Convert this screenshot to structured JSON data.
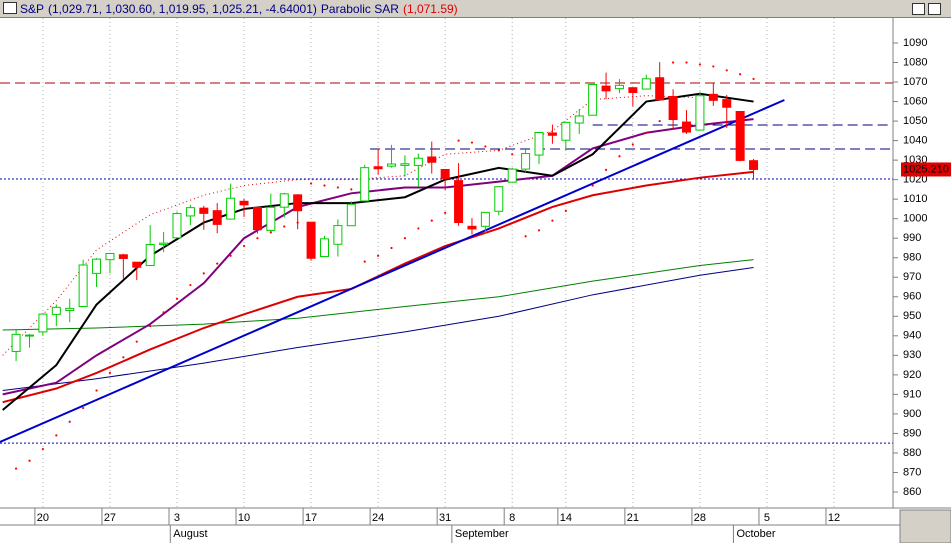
{
  "chart_data": {
    "type": "candlestick",
    "title": "S&P",
    "ohlc_label": "(1,029.71, 1,030.60, 1,019.95, 1,025.21, -4.64001)",
    "xlim": [
      -3.2,
      63.4
    ],
    "ylim": [
      851.8,
      1102.8
    ],
    "yticks": [
      860,
      870,
      880,
      890,
      900,
      910,
      920,
      930,
      940,
      950,
      960,
      970,
      980,
      990,
      1000,
      1010,
      1020,
      1030,
      1040,
      1050,
      1060,
      1070,
      1080,
      1090
    ],
    "xticks": [
      {
        "value": 0,
        "label": "20"
      },
      {
        "value": 5,
        "label": "27"
      },
      {
        "value": 10,
        "label": "3"
      },
      {
        "value": 15,
        "label": "10"
      },
      {
        "value": 20,
        "label": "17"
      },
      {
        "value": 25,
        "label": "24"
      },
      {
        "value": 30,
        "label": "31"
      },
      {
        "value": 35,
        "label": "8"
      },
      {
        "value": 39,
        "label": "14"
      },
      {
        "value": 44,
        "label": "21"
      },
      {
        "value": 49,
        "label": "28"
      },
      {
        "value": 54,
        "label": "5"
      },
      {
        "value": 59,
        "label": "12"
      }
    ],
    "months": [
      {
        "value": 9.5,
        "label": "August"
      },
      {
        "value": 30.5,
        "label": "September"
      },
      {
        "value": 51.5,
        "label": "October"
      }
    ],
    "grid": true,
    "candles": {
      "up_color": "#00cc00",
      "down_color": "#ff0000",
      "x": [
        -2,
        -1,
        0,
        1,
        2,
        3,
        4,
        5,
        6,
        7,
        8,
        9,
        10,
        11,
        12,
        13,
        14,
        15,
        16,
        17,
        18,
        19,
        20,
        21,
        22,
        23,
        24,
        25,
        26,
        27,
        28,
        29,
        30,
        31,
        32,
        33,
        34,
        35,
        36,
        37,
        38,
        39,
        40,
        41,
        42,
        43,
        44,
        45,
        46,
        47,
        48,
        49,
        50,
        51,
        52,
        53
      ],
      "open": [
        932,
        940,
        942,
        951,
        953,
        955,
        972,
        979,
        981.5,
        977.7,
        976,
        986.8,
        990.2,
        1001.4,
        1005.4,
        1004.1,
        999.8,
        1008.9,
        1005.8,
        994,
        1005.9,
        1012.2,
        998.2,
        980.6,
        986.9,
        996.4,
        1009.1,
        1026.6,
        1026.9,
        1027.3,
        1027.3,
        1031.6,
        1025.2,
        1019.5,
        996.1,
        996.1,
        1003.8,
        1018.7,
        1025.4,
        1032.6,
        1043.9,
        1040.2,
        1049,
        1053,
        1067.9,
        1066.6,
        1067.1,
        1066.4,
        1072.2,
        1062.6,
        1049.5,
        1045.4,
        1063.7,
        1061,
        1054.9,
        1029.71
      ],
      "high": [
        943,
        941,
        951.6,
        956,
        959,
        979,
        979.8,
        982.5,
        982,
        977.7,
        996.7,
        993.2,
        1003.6,
        1007.1,
        1006.6,
        1008,
        1018,
        1010.1,
        1005.8,
        1012.8,
        1013.2,
        1012.6,
        998.2,
        991.2,
        999.6,
        1008.9,
        1027.6,
        1035.8,
        1037.8,
        1032.5,
        1033.3,
        1039.5,
        1025.2,
        1028.5,
        1000.3,
        1003.4,
        1016.5,
        1026.1,
        1036.3,
        1044.1,
        1048.2,
        1049.7,
        1056,
        1068.8,
        1074.8,
        1071.5,
        1067.3,
        1073.8,
        1080.2,
        1066.3,
        1055.6,
        1065.1,
        1069.6,
        1063.4,
        1054.9,
        1030.6
      ],
      "low": [
        927,
        934,
        940,
        945,
        947,
        955,
        965,
        972,
        969,
        968.6,
        976,
        982.9,
        990.2,
        996.7,
        994.3,
        992.5,
        999.8,
        1000.9,
        992.4,
        993.4,
        1000.5,
        994.6,
        978.5,
        980.6,
        980.6,
        996.4,
        1009.1,
        1022.5,
        1026.2,
        1021.6,
        1016.2,
        1023.1,
        1014.6,
        996.3,
        991.9,
        992.3,
        1001.7,
        1018.7,
        1023.8,
        1028,
        1038.4,
        1035,
        1043.4,
        1052.9,
        1061.2,
        1064.3,
        1057.5,
        1066.4,
        1060.4,
        1045.9,
        1043.4,
        1045.4,
        1057.8,
        1046.5,
        1029.4,
        1019.95
      ],
      "close": [
        940.74,
        940.38,
        951.13,
        954.58,
        954.07,
        976.29,
        979.26,
        982.18,
        979.62,
        975.15,
        986.75,
        987.48,
        1002.63,
        1005.65,
        1002.72,
        997.08,
        1010.48,
        1007.1,
        994.35,
        1005.81,
        1012.73,
        1004.09,
        979.73,
        989.67,
        996.46,
        1007.37,
        1026.13,
        1025.57,
        1028,
        1028.12,
        1030.98,
        1028.93,
        1020.62,
        998.04,
        994.75,
        1003.24,
        1016.4,
        1025.39,
        1033.37,
        1044.14,
        1042.73,
        1049.34,
        1052.63,
        1068.76,
        1065.49,
        1068.3,
        1064.66,
        1071.66,
        1060.87,
        1050.78,
        1044.38,
        1062.98,
        1060.61,
        1057.08,
        1029.85,
        1025.21
      ]
    },
    "sar": {
      "label": "Parabolic SAR",
      "value_label": "(1,071.59)",
      "color": "#ff0000",
      "values": [
        872,
        876,
        882,
        889,
        896,
        903,
        912,
        921,
        929,
        937,
        945,
        952,
        959,
        966,
        972,
        977,
        981,
        986,
        990,
        993,
        996,
        998,
        1018,
        1017,
        1016,
        1015,
        978,
        981,
        985,
        990,
        995,
        999,
        1003,
        1040,
        1039,
        1037,
        1035,
        1033,
        991,
        994,
        999,
        1004,
        1010,
        1017,
        1025,
        1032,
        1038,
        1044,
        1050,
        1080,
        1080,
        1079,
        1078,
        1076,
        1074,
        1071.59
      ]
    },
    "lines": [
      {
        "color": "#008000",
        "style": "thin",
        "x": [
          -3,
          4,
          12,
          19,
          27,
          34,
          41,
          49,
          53
        ],
        "values": [
          943,
          944,
          946,
          949,
          955,
          960,
          968,
          976,
          979
        ]
      },
      {
        "color": "#000080",
        "style": "thin",
        "x": [
          -3,
          4,
          12,
          19,
          27,
          34,
          41,
          49,
          53
        ],
        "values": [
          912,
          918,
          926,
          934,
          942,
          950,
          961,
          971,
          975
        ]
      },
      {
        "color": "#e00000",
        "style": "dotted",
        "x": [
          -3,
          1,
          4,
          8,
          12,
          15,
          19,
          23,
          27,
          30,
          34,
          38,
          41,
          45,
          49
        ],
        "values": [
          930,
          958,
          984,
          1002,
          1012,
          1017,
          1020,
          1020,
          1022,
          1033,
          1035,
          1045,
          1061,
          1063,
          1062
        ]
      },
      {
        "color": "#dd0000",
        "style": "thick",
        "x": [
          -3,
          1,
          4,
          8,
          12,
          15,
          19,
          23,
          27,
          30,
          34,
          38,
          41,
          45,
          49,
          53
        ],
        "values": [
          906,
          913,
          921,
          933,
          944,
          951,
          960,
          964,
          977,
          986,
          995,
          1006,
          1012,
          1017,
          1021,
          1024
        ]
      },
      {
        "color": "#800080",
        "style": "thick",
        "x": [
          -3,
          1,
          4,
          8,
          12,
          15,
          19,
          23,
          27,
          30,
          34,
          38,
          41,
          45,
          49,
          53
        ],
        "values": [
          910,
          916,
          930,
          946,
          967,
          990,
          1006,
          1013,
          1016,
          1016,
          1019,
          1022,
          1036,
          1044,
          1048,
          1051
        ]
      },
      {
        "color": "#000000",
        "style": "thick",
        "x": [
          -3,
          1,
          4,
          8,
          12,
          15,
          19,
          23,
          27,
          30,
          34,
          38,
          41,
          45,
          49,
          53
        ],
        "values": [
          902,
          925,
          956,
          981,
          998,
          1005,
          1008,
          1008,
          1011,
          1020,
          1026,
          1022,
          1033,
          1060,
          1064,
          1060
        ]
      },
      {
        "color": "#0000cc",
        "style": "thick",
        "x": [
          -3.2,
          55.3
        ],
        "values": [
          885.6,
          1060.8
        ]
      }
    ],
    "hlines": [
      {
        "value": 1069.5,
        "color": "#b00000",
        "style": "dashed",
        "x": -3.2
      },
      {
        "value": 1048,
        "color": "#000080",
        "style": "dashed",
        "x": 41
      },
      {
        "value": 1035.7,
        "color": "#000080",
        "style": "dashed",
        "x": 24.4
      },
      {
        "value": 1020.3,
        "color": "#0000c0",
        "style": "dotted",
        "x": -3.2
      },
      {
        "value": 885,
        "color": "#0000c0",
        "style": "dotted",
        "x": -3.2
      }
    ],
    "price_marker": {
      "value": 1025.21,
      "label": "1025.210",
      "color": "#e00000"
    }
  }
}
